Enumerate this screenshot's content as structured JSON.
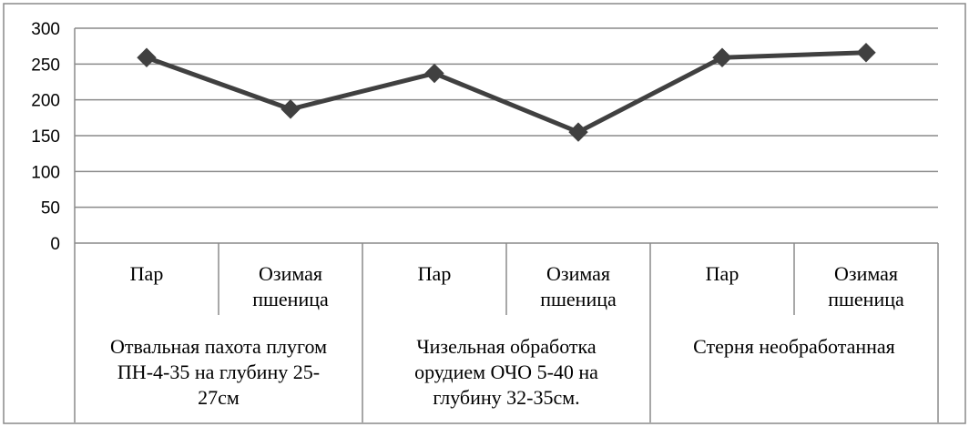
{
  "chart_data": {
    "type": "line",
    "categories": [
      {
        "label": [
          "Пар"
        ],
        "group": 0
      },
      {
        "label": [
          "Озимая",
          "пшеница"
        ],
        "group": 0
      },
      {
        "label": [
          "Пар"
        ],
        "group": 1
      },
      {
        "label": [
          "Озимая",
          "пшеница"
        ],
        "group": 1
      },
      {
        "label": [
          "Пар"
        ],
        "group": 2
      },
      {
        "label": [
          "Озимая",
          "пшеница"
        ],
        "group": 2
      }
    ],
    "groups": [
      {
        "label": [
          "Отвальная пахота плугом",
          "ПН-4-35 на глубину 25-",
          "27см"
        ]
      },
      {
        "label": [
          "Чизельная обработка",
          "орудием ОЧО 5-40 на",
          "глубину 32-35см."
        ]
      },
      {
        "label": [
          "Стерня необработанная"
        ]
      }
    ],
    "values": [
      259,
      187,
      237,
      155,
      259,
      266
    ],
    "ylim": [
      0,
      300
    ],
    "yticks": [
      0,
      50,
      100,
      150,
      200,
      250,
      300
    ],
    "title": "",
    "xlabel": "",
    "ylabel": "",
    "grid": true,
    "series_color": "#404040",
    "grid_color": "#8a8a8a",
    "marker": "diamond"
  }
}
